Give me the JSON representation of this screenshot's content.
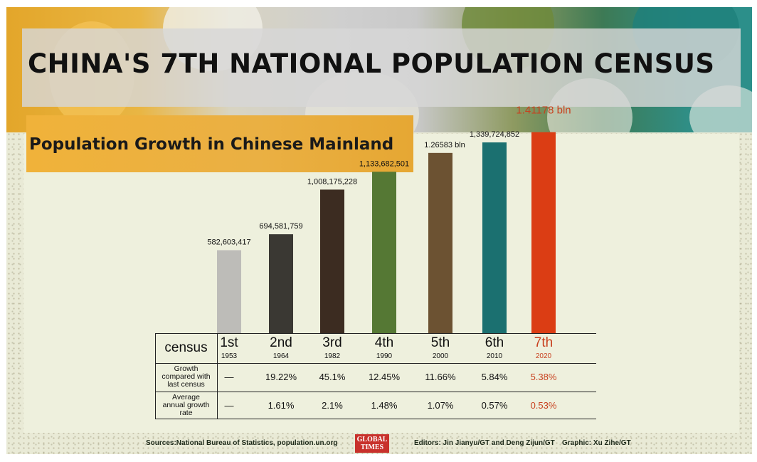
{
  "title": "CHINA'S 7TH NATIONAL POPULATION CENSUS",
  "subtitle": "Population Growth in Chinese Mainland",
  "colors": {
    "bar_1st": "#bdbcb8",
    "bar_2nd": "#3a3833",
    "bar_3rd": "#3c2c21",
    "bar_4th": "#557834",
    "bar_5th": "#6c5232",
    "bar_6th": "#1b7070",
    "bar_7th": "#db3d14",
    "highlight_text": "#c8401e"
  },
  "chart_data": {
    "type": "bar",
    "categories": [
      "1st",
      "2nd",
      "3rd",
      "4th",
      "5th",
      "6th",
      "7th"
    ],
    "years": [
      "1953",
      "1964",
      "1982",
      "1990",
      "2000",
      "2010",
      "2020"
    ],
    "values": [
      582603417,
      694581759,
      1008175228,
      1133682501,
      1265830000,
      1339724852,
      1411780000
    ],
    "data_labels": [
      "582,603,417",
      "694,581,759",
      "1,008,175,228",
      "1,133,682,501",
      "1.26583 bln",
      "1,339,724,852",
      "1.41178 bln"
    ],
    "grid": false
  },
  "table": {
    "header_label": "census",
    "rows": [
      {
        "label": "Growth compared with last census",
        "label_lines": [
          "Growth",
          "compared with",
          "last census"
        ],
        "values": [
          "—",
          "19.22%",
          "45.1%",
          "12.45%",
          "11.66%",
          "5.84%",
          "5.38%"
        ]
      },
      {
        "label": "Average annual growth rate",
        "label_lines": [
          "Average",
          "annual growth",
          "rate"
        ],
        "values": [
          "—",
          "1.61%",
          "2.1%",
          "1.48%",
          "1.07%",
          "0.57%",
          "0.53%"
        ]
      }
    ]
  },
  "footer": {
    "sources": "Sources:National Bureau of Statistics, population.un.org",
    "logo_line1": "GLOBAL",
    "logo_line2": "TIMES",
    "editors": "Editors: Jin Jianyu/GT and Deng Zijun/GT",
    "graphic": "Graphic: Xu Zihe/GT"
  }
}
